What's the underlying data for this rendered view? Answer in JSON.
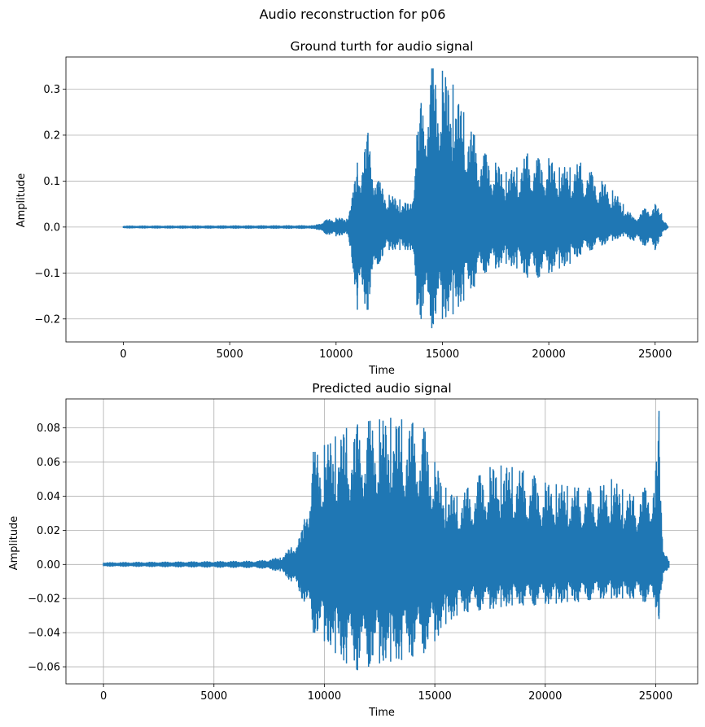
{
  "figure": {
    "suptitle": "Audio reconstruction for p06"
  },
  "chart_data": [
    {
      "type": "line",
      "title": "Ground turth for audio signal",
      "xlabel": "Time",
      "ylabel": "Amplitude",
      "xlim": [
        -2700,
        27000
      ],
      "ylim": [
        -0.25,
        0.37
      ],
      "xticks": [
        0,
        5000,
        10000,
        15000,
        20000,
        25000
      ],
      "yticks": [
        -0.2,
        -0.1,
        0.0,
        0.1,
        0.2,
        0.3
      ],
      "xtick_labels": [
        "0",
        "5000",
        "10000",
        "15000",
        "20000",
        "25000"
      ],
      "ytick_labels": [
        "−0.2",
        "−0.1",
        "0.0",
        "0.1",
        "0.2",
        "0.3"
      ],
      "grid": "horizontal",
      "series_color": "#1f77b4",
      "envelope": {
        "x": [
          0,
          9000,
          9500,
          10000,
          10500,
          10800,
          11000,
          11500,
          12000,
          12500,
          13000,
          13500,
          13800,
          14000,
          14500,
          15000,
          15500,
          16000,
          16500,
          17000,
          17500,
          18000,
          18500,
          19000,
          19500,
          20000,
          20500,
          21000,
          21500,
          22000,
          22500,
          23000,
          23500,
          24000,
          24500,
          25000,
          25300,
          25600
        ],
        "max": [
          0.002,
          0.003,
          0.015,
          0.02,
          0.018,
          0.075,
          0.14,
          0.205,
          0.1,
          0.07,
          0.06,
          0.05,
          0.2,
          0.27,
          0.345,
          0.34,
          0.31,
          0.25,
          0.2,
          0.16,
          0.14,
          0.12,
          0.13,
          0.16,
          0.15,
          0.15,
          0.13,
          0.13,
          0.14,
          0.12,
          0.1,
          0.08,
          0.05,
          0.02,
          0.04,
          0.05,
          0.03,
          0.002
        ],
        "min": [
          -0.002,
          -0.003,
          -0.015,
          -0.02,
          -0.015,
          -0.09,
          -0.18,
          -0.18,
          -0.08,
          -0.05,
          -0.05,
          -0.05,
          -0.17,
          -0.2,
          -0.22,
          -0.2,
          -0.19,
          -0.16,
          -0.13,
          -0.1,
          -0.09,
          -0.08,
          -0.09,
          -0.11,
          -0.11,
          -0.1,
          -0.09,
          -0.08,
          -0.06,
          -0.05,
          -0.04,
          -0.03,
          -0.02,
          -0.03,
          -0.04,
          -0.05,
          -0.02,
          -0.002
        ]
      }
    },
    {
      "type": "line",
      "title": "Predicted audio signal",
      "xlabel": "Time",
      "ylabel": "Amplitude",
      "xlim": [
        -1700,
        26900
      ],
      "ylim": [
        -0.07,
        0.097
      ],
      "xticks": [
        0,
        5000,
        10000,
        15000,
        20000,
        25000
      ],
      "yticks": [
        -0.06,
        -0.04,
        -0.02,
        0.0,
        0.02,
        0.04,
        0.06,
        0.08
      ],
      "xtick_labels": [
        "0",
        "5000",
        "10000",
        "15000",
        "20000",
        "25000"
      ],
      "ytick_labels": [
        "−0.06",
        "−0.04",
        "−0.02",
        "0.00",
        "0.02",
        "0.04",
        "0.06",
        "0.08"
      ],
      "grid": "both",
      "series_color": "#1f77b4",
      "envelope": {
        "x": [
          0,
          7000,
          8000,
          8500,
          9000,
          9500,
          10000,
          10500,
          11000,
          11500,
          12000,
          12500,
          13000,
          13500,
          14000,
          14500,
          15000,
          15500,
          16000,
          16500,
          17000,
          17500,
          18000,
          18500,
          19000,
          19500,
          20000,
          20500,
          21000,
          21500,
          22000,
          22500,
          23000,
          23500,
          24000,
          24500,
          25000,
          25150,
          25300,
          25600
        ],
        "max": [
          0.001,
          0.002,
          0.004,
          0.01,
          0.02,
          0.066,
          0.07,
          0.075,
          0.08,
          0.082,
          0.084,
          0.085,
          0.086,
          0.085,
          0.083,
          0.08,
          0.06,
          0.045,
          0.04,
          0.045,
          0.052,
          0.057,
          0.058,
          0.057,
          0.055,
          0.052,
          0.048,
          0.047,
          0.046,
          0.045,
          0.045,
          0.046,
          0.05,
          0.044,
          0.04,
          0.045,
          0.055,
          0.09,
          0.015,
          0.002
        ],
        "min": [
          -0.001,
          -0.002,
          -0.004,
          -0.01,
          -0.02,
          -0.04,
          -0.045,
          -0.052,
          -0.058,
          -0.062,
          -0.06,
          -0.058,
          -0.057,
          -0.056,
          -0.054,
          -0.052,
          -0.045,
          -0.035,
          -0.03,
          -0.028,
          -0.027,
          -0.026,
          -0.025,
          -0.024,
          -0.024,
          -0.024,
          -0.023,
          -0.023,
          -0.022,
          -0.022,
          -0.021,
          -0.02,
          -0.02,
          -0.02,
          -0.02,
          -0.022,
          -0.025,
          -0.032,
          -0.01,
          -0.002
        ]
      }
    }
  ]
}
